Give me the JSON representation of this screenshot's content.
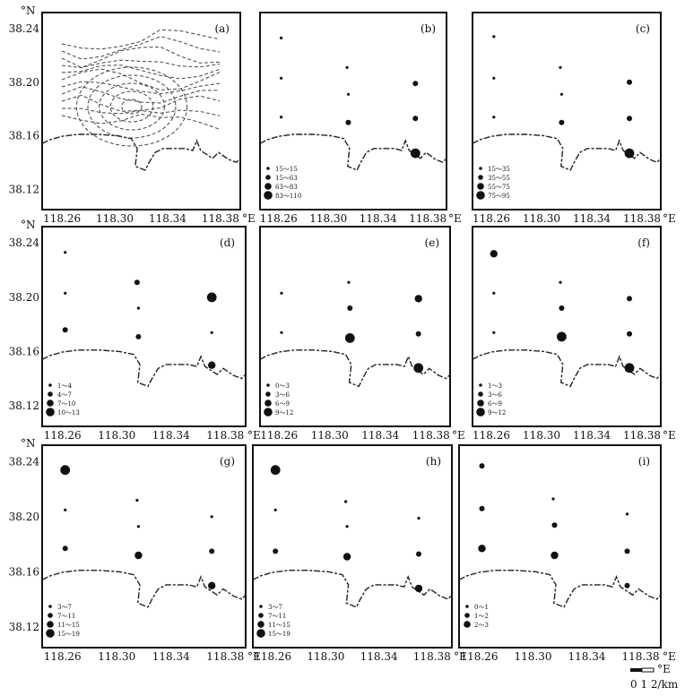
{
  "units": {
    "lat": "°N",
    "lon": "°E"
  },
  "lat_ticks": [
    "38.24",
    "38.20",
    "38.16",
    "38.12"
  ],
  "lon_ticks": [
    "118.26",
    "118.30",
    "118.34",
    "118.38"
  ],
  "scale_bar": {
    "label": "0  1  2/km"
  },
  "panels": [
    {
      "letter": "(a)",
      "type": "contours",
      "legend": []
    },
    {
      "letter": "(b)",
      "type": "stations",
      "legend": [
        "15～15",
        "15～63",
        "63～83",
        "83～110"
      ],
      "stations": [
        {
          "lon": 118.262,
          "lat": 38.233,
          "c": 0
        },
        {
          "lon": 118.262,
          "lat": 38.203,
          "c": 0
        },
        {
          "lon": 118.262,
          "lat": 38.174,
          "c": 0
        },
        {
          "lon": 118.315,
          "lat": 38.211,
          "c": 0
        },
        {
          "lon": 118.316,
          "lat": 38.191,
          "c": 0
        },
        {
          "lon": 118.316,
          "lat": 38.17,
          "c": 1
        },
        {
          "lon": 118.37,
          "lat": 38.199,
          "c": 1
        },
        {
          "lon": 118.37,
          "lat": 38.173,
          "c": 1
        },
        {
          "lon": 118.37,
          "lat": 38.147,
          "c": 3
        }
      ]
    },
    {
      "letter": "(c)",
      "type": "stations",
      "legend": [
        "15～35",
        "35～55",
        "55～75",
        "75～95"
      ],
      "stations": [
        {
          "lon": 118.262,
          "lat": 38.234,
          "c": 0
        },
        {
          "lon": 118.262,
          "lat": 38.203,
          "c": 0
        },
        {
          "lon": 118.262,
          "lat": 38.174,
          "c": 0
        },
        {
          "lon": 118.315,
          "lat": 38.211,
          "c": 0
        },
        {
          "lon": 118.316,
          "lat": 38.191,
          "c": 0
        },
        {
          "lon": 118.316,
          "lat": 38.17,
          "c": 1
        },
        {
          "lon": 118.37,
          "lat": 38.2,
          "c": 1
        },
        {
          "lon": 118.37,
          "lat": 38.173,
          "c": 1
        },
        {
          "lon": 118.37,
          "lat": 38.147,
          "c": 3
        }
      ]
    },
    {
      "letter": "(d)",
      "type": "stations",
      "legend": [
        "1～4",
        "4～7",
        "7～10",
        "10～13"
      ],
      "stations": [
        {
          "lon": 118.262,
          "lat": 38.233,
          "c": 0
        },
        {
          "lon": 118.262,
          "lat": 38.203,
          "c": 0
        },
        {
          "lon": 118.262,
          "lat": 38.176,
          "c": 1
        },
        {
          "lon": 118.315,
          "lat": 38.211,
          "c": 1
        },
        {
          "lon": 118.316,
          "lat": 38.192,
          "c": 0
        },
        {
          "lon": 118.316,
          "lat": 38.171,
          "c": 1
        },
        {
          "lon": 118.37,
          "lat": 38.2,
          "c": 3
        },
        {
          "lon": 118.37,
          "lat": 38.174,
          "c": 0
        },
        {
          "lon": 118.37,
          "lat": 38.15,
          "c": 2
        }
      ]
    },
    {
      "letter": "(e)",
      "type": "stations",
      "legend": [
        "0～3",
        "3～6",
        "6～9",
        "9～12"
      ],
      "stations": [
        {
          "lon": 118.262,
          "lat": 38.203,
          "c": 0
        },
        {
          "lon": 118.262,
          "lat": 38.174,
          "c": 0
        },
        {
          "lon": 118.315,
          "lat": 38.211,
          "c": 0
        },
        {
          "lon": 118.316,
          "lat": 38.192,
          "c": 1
        },
        {
          "lon": 118.316,
          "lat": 38.17,
          "c": 3
        },
        {
          "lon": 118.37,
          "lat": 38.199,
          "c": 2
        },
        {
          "lon": 118.37,
          "lat": 38.173,
          "c": 1
        },
        {
          "lon": 118.37,
          "lat": 38.148,
          "c": 3
        }
      ]
    },
    {
      "letter": "(f)",
      "type": "stations",
      "legend": [
        "1～3",
        "3～6",
        "6～9",
        "9～12"
      ],
      "stations": [
        {
          "lon": 118.262,
          "lat": 38.232,
          "c": 2
        },
        {
          "lon": 118.262,
          "lat": 38.203,
          "c": 0
        },
        {
          "lon": 118.262,
          "lat": 38.174,
          "c": 0
        },
        {
          "lon": 118.315,
          "lat": 38.211,
          "c": 0
        },
        {
          "lon": 118.316,
          "lat": 38.192,
          "c": 1
        },
        {
          "lon": 118.316,
          "lat": 38.171,
          "c": 3
        },
        {
          "lon": 118.37,
          "lat": 38.199,
          "c": 1
        },
        {
          "lon": 118.37,
          "lat": 38.173,
          "c": 1
        },
        {
          "lon": 118.37,
          "lat": 38.148,
          "c": 3
        }
      ]
    },
    {
      "letter": "(g)",
      "type": "stations",
      "legend": [
        "3～7",
        "7～11",
        "11～15",
        "15～19"
      ],
      "stations": [
        {
          "lon": 118.262,
          "lat": 38.234,
          "c": 3
        },
        {
          "lon": 118.262,
          "lat": 38.205,
          "c": 0
        },
        {
          "lon": 118.262,
          "lat": 38.177,
          "c": 1
        },
        {
          "lon": 118.315,
          "lat": 38.212,
          "c": 0
        },
        {
          "lon": 118.316,
          "lat": 38.193,
          "c": 0
        },
        {
          "lon": 118.316,
          "lat": 38.172,
          "c": 2
        },
        {
          "lon": 118.37,
          "lat": 38.2,
          "c": 0
        },
        {
          "lon": 118.37,
          "lat": 38.175,
          "c": 1
        },
        {
          "lon": 118.37,
          "lat": 38.15,
          "c": 2
        }
      ]
    },
    {
      "letter": "(h)",
      "type": "stations",
      "legend": [
        "3～7",
        "7～11",
        "11～15",
        "15～19"
      ],
      "stations": [
        {
          "lon": 118.262,
          "lat": 38.234,
          "c": 3
        },
        {
          "lon": 118.262,
          "lat": 38.205,
          "c": 0
        },
        {
          "lon": 118.262,
          "lat": 38.175,
          "c": 1
        },
        {
          "lon": 118.315,
          "lat": 38.211,
          "c": 0
        },
        {
          "lon": 118.316,
          "lat": 38.193,
          "c": 0
        },
        {
          "lon": 118.316,
          "lat": 38.171,
          "c": 2
        },
        {
          "lon": 118.37,
          "lat": 38.199,
          "c": 0
        },
        {
          "lon": 118.37,
          "lat": 38.173,
          "c": 1
        },
        {
          "lon": 118.37,
          "lat": 38.148,
          "c": 2
        }
      ]
    },
    {
      "letter": "(i)",
      "type": "stations",
      "legend": [
        "0～1",
        "1～2",
        "2～3"
      ],
      "stations": [
        {
          "lon": 118.262,
          "lat": 38.237,
          "c": 1
        },
        {
          "lon": 118.262,
          "lat": 38.206,
          "c": 1
        },
        {
          "lon": 118.262,
          "lat": 38.177,
          "c": 2
        },
        {
          "lon": 118.315,
          "lat": 38.213,
          "c": 0
        },
        {
          "lon": 118.316,
          "lat": 38.194,
          "c": 1
        },
        {
          "lon": 118.316,
          "lat": 38.172,
          "c": 2
        },
        {
          "lon": 118.37,
          "lat": 38.202,
          "c": 0
        },
        {
          "lon": 118.37,
          "lat": 38.175,
          "c": 1
        },
        {
          "lon": 118.37,
          "lat": 38.15,
          "c": 1
        }
      ]
    }
  ]
}
